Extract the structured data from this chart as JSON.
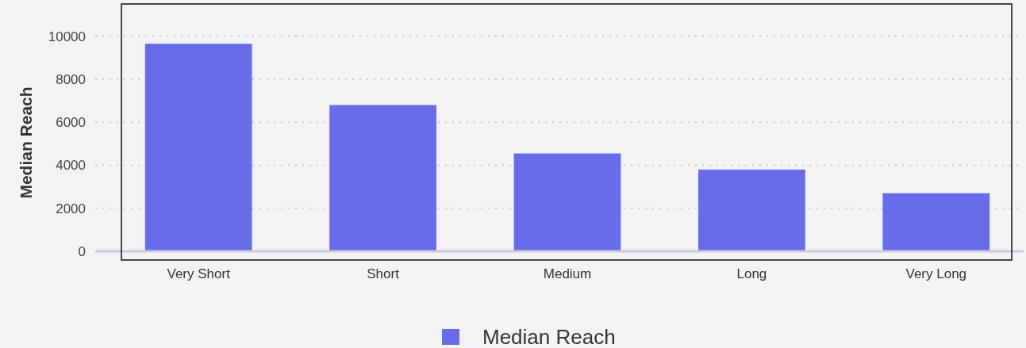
{
  "chart_data": {
    "type": "bar",
    "ylabel": "Median Reach",
    "categories": [
      "Very Short",
      "Short",
      "Medium",
      "Long",
      "Very Long"
    ],
    "series": [
      {
        "name": "Median Reach",
        "color": "#696ce9",
        "values": [
          9650,
          6800,
          4550,
          3800,
          2700
        ]
      }
    ],
    "ylim": [
      0,
      11500
    ],
    "yticks": [
      0,
      2000,
      4000,
      6000,
      8000,
      10000
    ],
    "grid": "y",
    "legend": "bottom"
  }
}
